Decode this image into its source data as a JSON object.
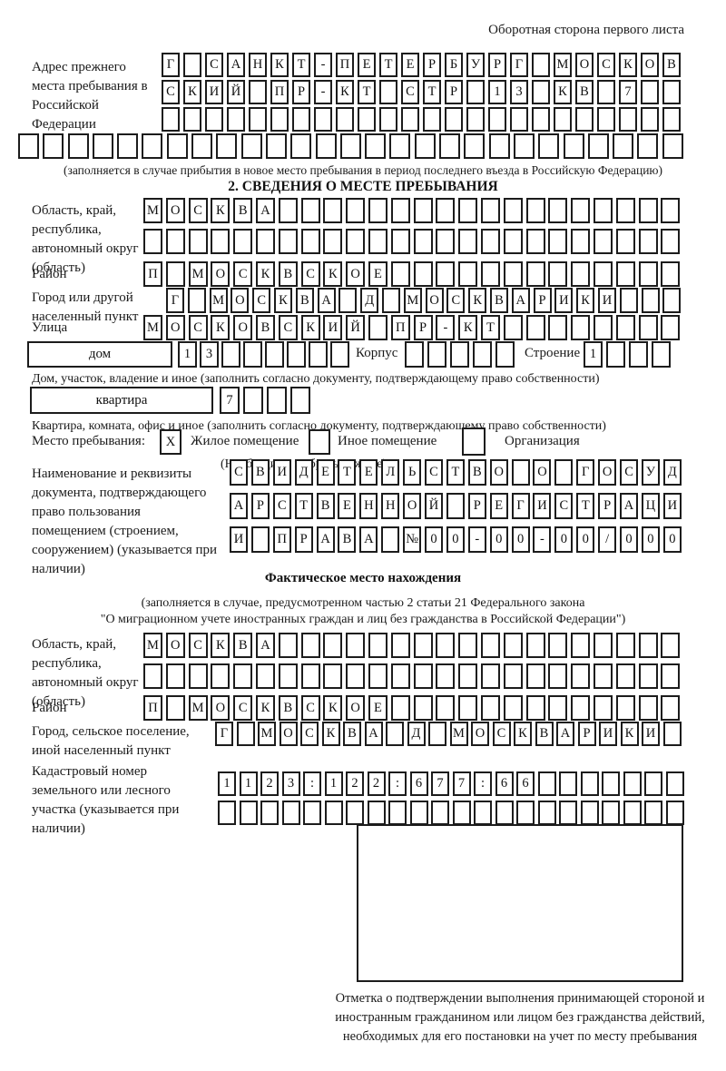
{
  "page": {
    "side_note": "Оборотная сторона первого листа"
  },
  "prev_address": {
    "label": "Адрес прежнего места пребывания в Российской Федерации",
    "rows": [
      "Г САНКТ-ПЕТЕРБУРГ МОСКОВ",
      "СКИЙ ПР-КТ СТР 13 КВ 7",
      "",
      ""
    ],
    "note": "(заполняется в случае прибытия в новое место пребывания в период последнего въезда в Российскую Федерацию)"
  },
  "section2": {
    "title": "2. СВЕДЕНИЯ О МЕСТЕ ПРЕБЫВАНИЯ",
    "region": {
      "label": "Область, край, республика, автономный округ (область)",
      "rows": [
        "МОСКВА",
        ""
      ]
    },
    "district": {
      "label": "Район",
      "row": "П МОСКВСКОЕ"
    },
    "city": {
      "label": "Город или другой населенный пункт",
      "row": "Г МОСКВА Д МОСКВАРИКИ"
    },
    "street": {
      "label": "Улица",
      "row": "МОСКОВСКИЙ ПР-КТ"
    },
    "house": {
      "label": "дом",
      "value": "13",
      "korpus_label": "Корпус",
      "korpus_value": "",
      "stroenie_label": "Строение",
      "stroenie_value": "1"
    },
    "house_note": "Дом, участок, владение и иное (заполнить согласно документу, подтверждающему право собственности)",
    "apartment": {
      "label": "квартира",
      "value": "7"
    },
    "apartment_note": "Квартира, комната, офис и иное (заполнить согласно документу, подтверждающему право собственности)",
    "stay_place": {
      "label": "Место пребывания:",
      "options": [
        {
          "label": "Жилое помещение",
          "mark": "X"
        },
        {
          "label": "Иное помещение",
          "mark": ""
        },
        {
          "label": "Организация",
          "mark": ""
        }
      ],
      "note": "(Необходимо выбрать нужное)"
    },
    "doc": {
      "label": "Наименование и реквизиты документа, подтверждающего право пользования помещением (строением, сооружением) (указывается при наличии)",
      "rows": [
        "СВИДЕТЕЛЬСТВО О ГОСУД",
        "АРСТВЕННОЙ РЕГИСТРАЦИ",
        "И ПРАВА №00-00-00/000"
      ]
    }
  },
  "actual_location": {
    "title": "Фактическое место нахождения",
    "note_line1": "(заполняется в случае, предусмотренном частью 2 статьи 21 Федерального закона",
    "note_line2": "\"О миграционном учете иностранных граждан и лиц без гражданства в Российской Федерации\")",
    "region": {
      "label": "Область, край, республика, автономный округ (область)",
      "rows": [
        "МОСКВА",
        ""
      ]
    },
    "district": {
      "label": "Район",
      "row": "П МОСКВСКОЕ"
    },
    "settlement": {
      "label": "Город, сельское поселение, иной населенный пункт",
      "row": "Г МОСКВА Д МОСКВАРИКИ"
    },
    "cadastral": {
      "label": "Кадастровый номер земельного или лесного участка (указывается при наличии)",
      "rows": [
        "1123:122:677:66",
        ""
      ]
    },
    "stamp_note": "Отметка о подтверждении выполнения принимающей стороной и иностранным гражданином или лицом без гражданства действий, необходимых для его постановки на учет по месту пребывания"
  }
}
